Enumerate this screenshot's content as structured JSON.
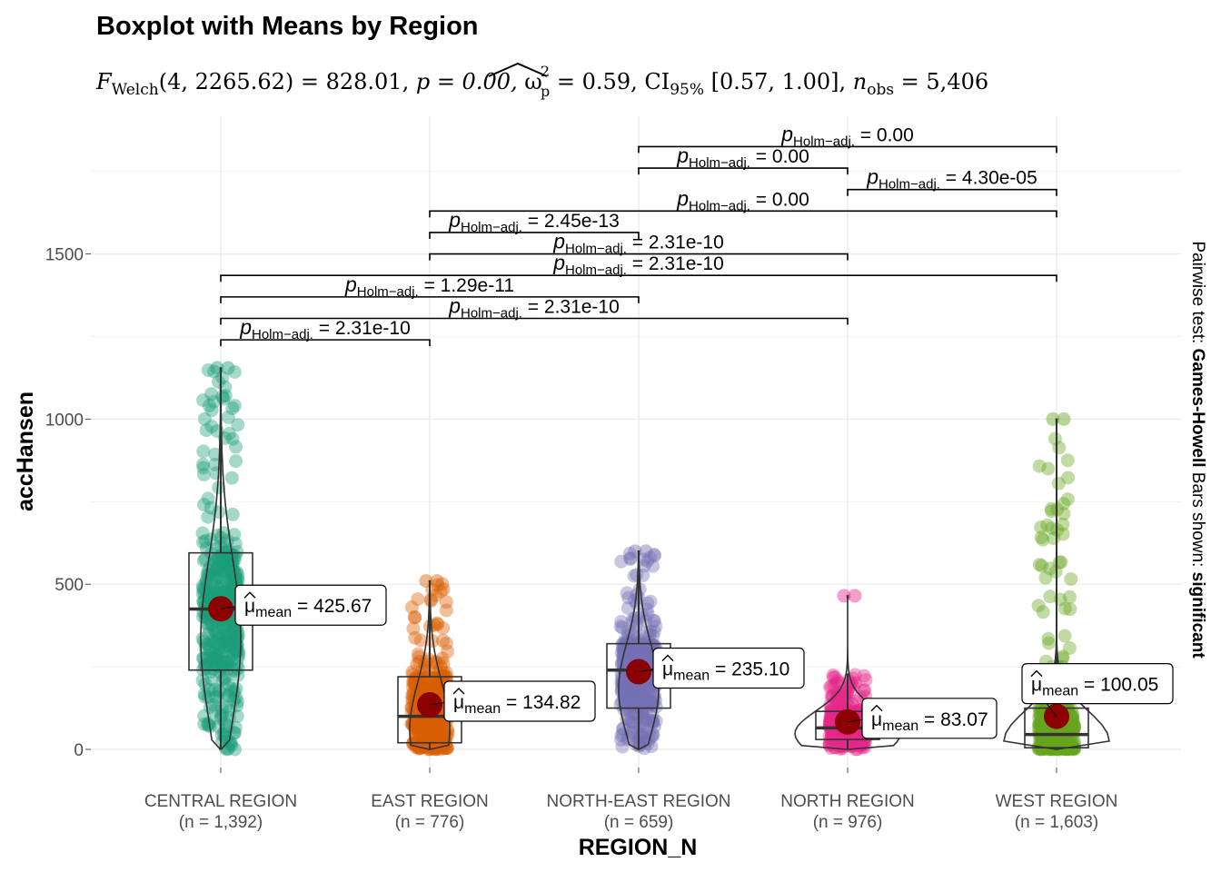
{
  "chart_data": {
    "type": "boxplot",
    "title": "Boxplot with Means by Region",
    "subtitle": {
      "stat_name": "F",
      "stat_sub": "Welch",
      "stat_args": "(4, 2265.62) = 828.01, ",
      "p_text": "p = 0.00, ",
      "effect_symbol": "ω",
      "effect_sup": "2",
      "effect_sub": "p",
      "effect_value": " = 0.59, CI",
      "ci_sub": "95%",
      "ci_value": " [0.57, 1.00], ",
      "n_name": "n",
      "n_sub": "obs",
      "n_value": " = 5,406"
    },
    "xlabel": "REGION_N",
    "ylabel": "accHansen",
    "ylim": [
      -40,
      1800
    ],
    "yticks": [
      0,
      500,
      1000,
      1500
    ],
    "ytick_labels": [
      "0",
      "500",
      "1000",
      "1500"
    ],
    "caption": {
      "prefix": "Pairwise test: ",
      "test_name": "Games-Howell",
      "middle": " Bars shown: ",
      "bars": "significant"
    },
    "mean_prefix": "μ",
    "mean_sub": "mean",
    "p_label_sub": "Holm−adj.",
    "groups": [
      {
        "category": "CENTRAL REGION",
        "n_label": "(n = 1,392)",
        "color": "#1B9E77",
        "q1": 240,
        "median": 425,
        "q3": 595,
        "whisker_low": 0,
        "whisker_high": 1150,
        "mean": 425.67,
        "mean_label": " = 425.67",
        "max_point": 1155
      },
      {
        "category": "EAST REGION",
        "n_label": "(n = 776)",
        "color": "#D95F02",
        "q1": 20,
        "median": 100,
        "q3": 220,
        "whisker_low": 0,
        "whisker_high": 505,
        "mean": 134.82,
        "mean_label": " = 134.82",
        "max_point": 510
      },
      {
        "category": "NORTH-EAST REGION",
        "n_label": "(n = 659)",
        "color": "#7570B3",
        "q1": 125,
        "median": 240,
        "q3": 320,
        "whisker_low": 0,
        "whisker_high": 600,
        "mean": 235.1,
        "mean_label": " = 235.10",
        "max_point": 600
      },
      {
        "category": "NORTH REGION",
        "n_label": "(n = 976)",
        "color": "#E7298A",
        "q1": 30,
        "median": 65,
        "q3": 115,
        "whisker_low": 0,
        "whisker_high": 230,
        "mean": 83.07,
        "mean_label": " = 83.07",
        "max_point": 465
      },
      {
        "category": "WEST REGION",
        "n_label": "(n = 1,603)",
        "color": "#66A61E",
        "q1": 5,
        "median": 45,
        "q3": 125,
        "whisker_low": 0,
        "whisker_high": 1000,
        "mean": 100.05,
        "mean_label": " = 100.05",
        "max_point": 1000
      }
    ],
    "pairwise": [
      {
        "from": 0,
        "to": 1,
        "y": 1240,
        "p_value": " = 2.31e-10"
      },
      {
        "from": 0,
        "to": 3,
        "y": 1305,
        "p_value": " = 2.31e-10"
      },
      {
        "from": 0,
        "to": 2,
        "y": 1370,
        "p_value": " = 1.29e-11"
      },
      {
        "from": 0,
        "to": 4,
        "y": 1435,
        "p_value": " = 2.31e-10"
      },
      {
        "from": 1,
        "to": 3,
        "y": 1500,
        "p_value": " = 2.31e-10"
      },
      {
        "from": 1,
        "to": 2,
        "y": 1565,
        "p_value": " = 2.45e-13"
      },
      {
        "from": 1,
        "to": 4,
        "y": 1630,
        "p_value": " = 0.00"
      },
      {
        "from": 3,
        "to": 4,
        "y": 1695,
        "p_value": " = 4.30e-05"
      },
      {
        "from": 2,
        "to": 3,
        "y": 1760,
        "p_value": " = 0.00"
      },
      {
        "from": 2,
        "to": 4,
        "y": 1825,
        "p_value": " = 0.00"
      }
    ]
  }
}
